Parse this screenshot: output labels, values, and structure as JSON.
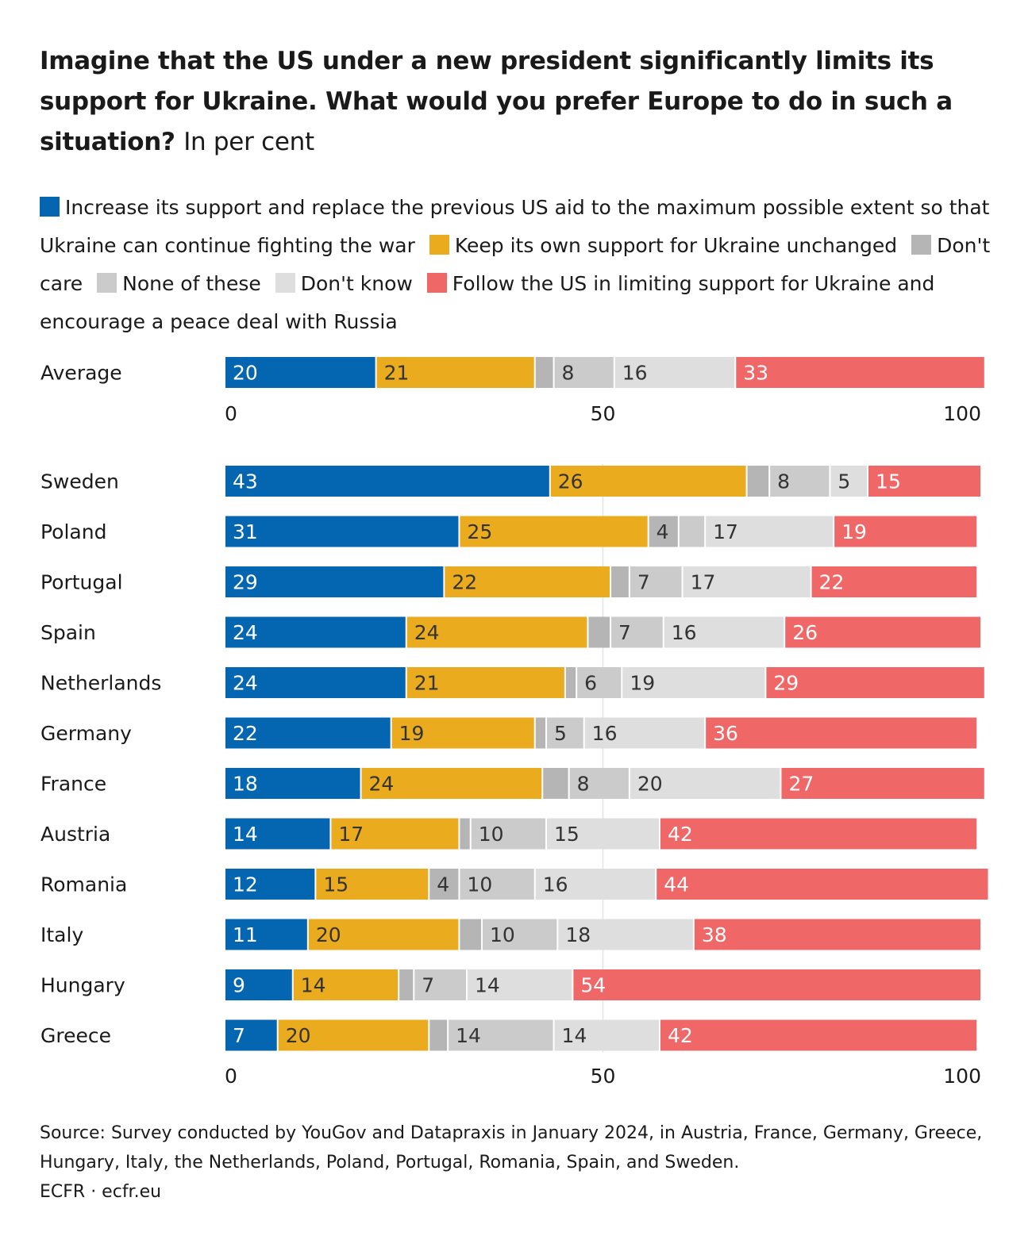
{
  "title": {
    "bold": "Imagine that the US under a new president significantly limits its support for Ukraine. What would you prefer Europe to do in such a situation?",
    "normal": "In per cent"
  },
  "legend": [
    {
      "label": "Increase its support and replace the previous US aid to the maximum possible extent so that Ukraine can continue fighting the war",
      "color": "#0466b0"
    },
    {
      "label": "Keep its own support for Ukraine unchanged",
      "color": "#ebab1e"
    },
    {
      "label": "Don't care",
      "color": "#b5b5b5"
    },
    {
      "label": "None of these",
      "color": "#cbcbcb"
    },
    {
      "label": "Don't know",
      "color": "#dedede"
    },
    {
      "label": "Follow the US in limiting support for Ukraine and encourage a peace deal with Russia",
      "color": "#f06768"
    }
  ],
  "chart_data": [
    {
      "type": "bar",
      "orientation": "horizontal",
      "stacked": true,
      "categories": [
        "Average"
      ],
      "series": [
        {
          "name": "Increase its support and replace the previous US aid to the maximum possible extent so that Ukraine can continue fighting the war",
          "values": [
            20
          ],
          "labels": [
            "20"
          ]
        },
        {
          "name": "Keep its own support for Ukraine unchanged",
          "values": [
            21
          ],
          "labels": [
            "21"
          ]
        },
        {
          "name": "Don't care",
          "values": [
            2.5
          ],
          "labels": [
            ""
          ]
        },
        {
          "name": "None of these",
          "values": [
            8
          ],
          "labels": [
            "8"
          ]
        },
        {
          "name": "Don't know",
          "values": [
            16
          ],
          "labels": [
            "16"
          ]
        },
        {
          "name": "Follow the US in limiting support for Ukraine and encourage a peace deal with Russia",
          "values": [
            33
          ],
          "labels": [
            "33"
          ]
        }
      ],
      "xlim": [
        0,
        100
      ],
      "xticks": [
        "0",
        "50",
        "100"
      ],
      "grid": false
    },
    {
      "type": "bar",
      "orientation": "horizontal",
      "stacked": true,
      "categories": [
        "Sweden",
        "Poland",
        "Portugal",
        "Spain",
        "Netherlands",
        "Germany",
        "France",
        "Austria",
        "Romania",
        "Italy",
        "Hungary",
        "Greece"
      ],
      "series": [
        {
          "name": "Increase its support and replace the previous US aid to the maximum possible extent so that Ukraine can continue fighting the war",
          "values": [
            43,
            31,
            29,
            24,
            24,
            22,
            18,
            14,
            12,
            11,
            9,
            7
          ],
          "labels": [
            "43",
            "31",
            "29",
            "24",
            "24",
            "22",
            "18",
            "14",
            "12",
            "11",
            "9",
            "7"
          ]
        },
        {
          "name": "Keep its own support for Ukraine unchanged",
          "values": [
            26,
            25,
            22,
            24,
            21,
            19,
            24,
            17,
            15,
            20,
            14,
            20
          ],
          "labels": [
            "26",
            "25",
            "22",
            "24",
            "21",
            "19",
            "24",
            "17",
            "15",
            "20",
            "14",
            "20"
          ]
        },
        {
          "name": "Don't care",
          "values": [
            3,
            4,
            2.5,
            3,
            1.5,
            1.5,
            3.5,
            1.5,
            4,
            3,
            2,
            2.5
          ],
          "labels": [
            "",
            "4",
            "",
            "",
            "",
            "",
            "",
            "",
            "4",
            "",
            "",
            ""
          ]
        },
        {
          "name": "None of these",
          "values": [
            8,
            3.5,
            7,
            7,
            6,
            5,
            8,
            10,
            10,
            10,
            7,
            14
          ],
          "labels": [
            "8",
            "",
            "7",
            "7",
            "6",
            "5",
            "8",
            "10",
            "10",
            "10",
            "7",
            "14"
          ]
        },
        {
          "name": "Don't know",
          "values": [
            5,
            17,
            17,
            16,
            19,
            16,
            20,
            15,
            16,
            18,
            14,
            14
          ],
          "labels": [
            "5",
            "17",
            "17",
            "16",
            "19",
            "16",
            "20",
            "15",
            "16",
            "18",
            "14",
            "14"
          ]
        },
        {
          "name": "Follow the US in limiting support for Ukraine and encourage a peace deal with Russia",
          "values": [
            15,
            19,
            22,
            26,
            29,
            36,
            27,
            42,
            44,
            38,
            54,
            42
          ],
          "labels": [
            "15",
            "19",
            "22",
            "26",
            "29",
            "36",
            "27",
            "42",
            "44",
            "38",
            "54",
            "42"
          ]
        }
      ],
      "xlim": [
        0,
        100
      ],
      "xticks": [
        "0",
        "50",
        "100"
      ],
      "grid": true
    }
  ],
  "source": {
    "text": "Source: Survey conducted by YouGov and Datapraxis in January 2024, in Austria, France, Germany, Greece, Hungary, Italy, the Netherlands, Poland, Portugal, Romania, Spain, and Sweden.",
    "credit": "ECFR · ecfr.eu"
  }
}
